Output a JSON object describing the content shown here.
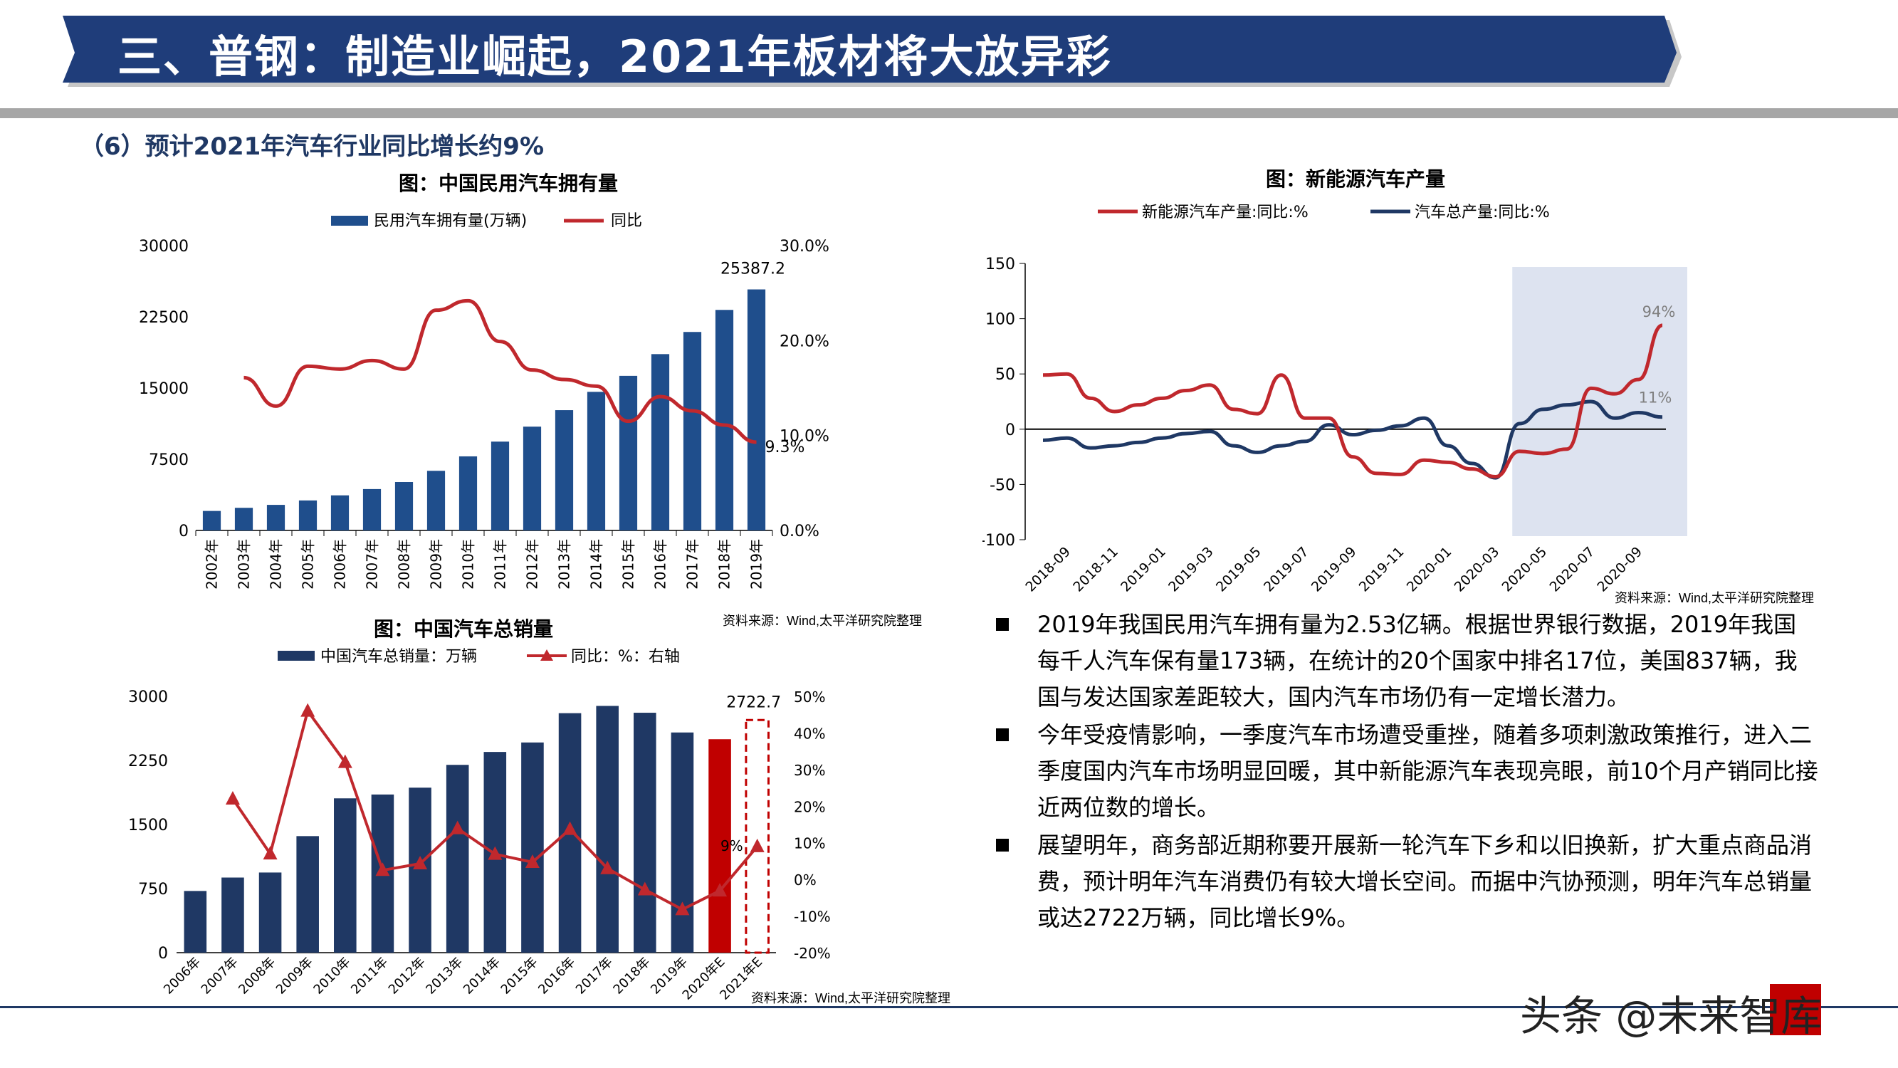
{
  "header": {
    "title": "三、普钢：制造业崛起，2021年板材将大放异彩",
    "banner_color": "#1f3d7a"
  },
  "section": {
    "title": "（6）预计2021年汽车行业同比增长约9%"
  },
  "charts": {
    "ownership": {
      "title": "图：中国民用汽车拥有量",
      "legend_bar": "民用汽车拥有量(万辆)",
      "legend_line": "同比",
      "source": "资料来源：Wind,太平洋研究院整理",
      "left_ticks": [
        "30000",
        "22500",
        "15000",
        "7500",
        "0"
      ],
      "right_ticks": [
        "30.0%",
        "20.0%",
        "10.0%",
        "0.0%"
      ],
      "label_last_bar": "25387.2",
      "label_last_line": "9.3%"
    },
    "nev": {
      "title": "图：新能源汽车产量",
      "legend_red": "新能源汽车产量:同比:%",
      "legend_blue": "汽车总产量:同比:%",
      "source": "资料来源：Wind,太平洋研究院整理",
      "y_ticks": [
        "150",
        "100",
        "50",
        "0",
        "-50",
        "-100"
      ],
      "x_ticks": [
        "2018-09",
        "2018-11",
        "2019-01",
        "2019-03",
        "2019-05",
        "2019-07",
        "2019-09",
        "2019-11",
        "2020-01",
        "2020-03",
        "2020-05",
        "2020-07",
        "2020-09"
      ],
      "label_red_end": "94%",
      "label_blue_end": "11%"
    },
    "sales": {
      "title": "图：中国汽车总销量",
      "legend_bar": "中国汽车总销量：万辆",
      "legend_line": "同比：%：右轴",
      "source": "资料来源：Wind,太平洋研究院整理",
      "left_ticks": [
        "3000",
        "2250",
        "1500",
        "750",
        "0"
      ],
      "right_ticks": [
        "50%",
        "40%",
        "30%",
        "20%",
        "10%",
        "0%",
        "-10%",
        "-20%"
      ],
      "label_last_bar": "2722.7",
      "label_last_line": "9%"
    }
  },
  "chart_data": [
    {
      "type": "bar",
      "title": "图：中国民用汽车拥有量",
      "categories": [
        "2002年",
        "2003年",
        "2004年",
        "2005年",
        "2006年",
        "2007年",
        "2008年",
        "2009年",
        "2010年",
        "2011年",
        "2012年",
        "2013年",
        "2014年",
        "2015年",
        "2016年",
        "2017年",
        "2018年",
        "2019年"
      ],
      "series": [
        {
          "name": "民用汽车拥有量(万辆)",
          "axis": "left",
          "values": [
            2053,
            2383,
            2694,
            3160,
            3697,
            4358,
            5100,
            6281,
            7802,
            9356,
            10933,
            12670,
            14598,
            16284,
            18575,
            20907,
            23231,
            25387.2
          ]
        },
        {
          "name": "同比",
          "type": "line",
          "axis": "right",
          "values": [
            null,
            16.1,
            13.1,
            17.3,
            17.0,
            17.9,
            17.0,
            23.2,
            24.2,
            19.9,
            16.9,
            15.9,
            15.2,
            11.5,
            14.1,
            12.6,
            11.1,
            9.3
          ]
        }
      ],
      "ylim_left": [
        0,
        30000
      ],
      "ylim_right": [
        0,
        30
      ],
      "legend_position": "top"
    },
    {
      "type": "line",
      "title": "图：新能源汽车产量",
      "x": [
        "2018-08",
        "2018-09",
        "2018-10",
        "2018-11",
        "2018-12",
        "2019-01",
        "2019-02",
        "2019-03",
        "2019-04",
        "2019-05",
        "2019-06",
        "2019-07",
        "2019-08",
        "2019-09",
        "2019-10",
        "2019-11",
        "2019-12",
        "2020-01",
        "2020-02",
        "2020-03",
        "2020-04",
        "2020-05",
        "2020-06",
        "2020-07",
        "2020-08",
        "2020-09",
        "2020-10"
      ],
      "series": [
        {
          "name": "新能源汽车产量:同比:%",
          "values": [
            49,
            50,
            28,
            16,
            22,
            28,
            35,
            40,
            18,
            14,
            49,
            10,
            10,
            -25,
            -40,
            -41,
            -28,
            -30,
            -36,
            -43,
            -20,
            -22,
            -18,
            37,
            32,
            45,
            94
          ]
        },
        {
          "name": "汽车总产量:同比:%",
          "values": [
            -10,
            -8,
            -17,
            -15,
            -12,
            -8,
            -4,
            -2,
            -15,
            -21,
            -15,
            -11,
            4,
            -5,
            -1,
            3,
            10,
            -15,
            -31,
            -44,
            5,
            18,
            22,
            25,
            10,
            15,
            11
          ]
        }
      ],
      "ylim": [
        -100,
        150
      ],
      "highlight_range": [
        "2020-04",
        "2020-10"
      ],
      "legend_position": "top"
    },
    {
      "type": "bar",
      "title": "图：中国汽车总销量",
      "categories": [
        "2006年",
        "2007年",
        "2008年",
        "2009年",
        "2010年",
        "2011年",
        "2012年",
        "2013年",
        "2014年",
        "2015年",
        "2016年",
        "2017年",
        "2018年",
        "2019年",
        "2020年E",
        "2021年E"
      ],
      "series": [
        {
          "name": "中国汽车总销量：万辆",
          "axis": "left",
          "values": [
            722,
            879,
            938,
            1364,
            1806,
            1851,
            1931,
            2198,
            2349,
            2460,
            2803,
            2888,
            2808,
            2577,
            2498,
            2722.7
          ]
        },
        {
          "name": "同比：%：右轴",
          "type": "line",
          "axis": "right",
          "values": [
            null,
            22,
            7,
            46,
            32,
            2.5,
            4.3,
            13.9,
            6.9,
            4.7,
            13.7,
            3.0,
            -2.8,
            -8.2,
            -3.1,
            9
          ]
        }
      ],
      "ylim_left": [
        0,
        3000
      ],
      "ylim_right": [
        -20,
        50
      ],
      "legend_position": "top"
    }
  ],
  "bullets": [
    "2019年我国民用汽车拥有量为2.53亿辆。根据世界银行数据，2019年我国每千人汽车保有量173辆，在统计的20个国家中排名17位，美国837辆，我国与发达国家差距较大，国内汽车市场仍有一定增长潜力。",
    "今年受疫情影响，一季度汽车市场遭受重挫，随着多项刺激政策推行，进入二季度国内汽车市场明显回暖，其中新能源汽车表现亮眼，前10个月产销同比接近两位数的增长。",
    "展望明年，商务部近期称要开展新一轮汽车下乡和以旧换新，扩大重点商品消费，预计明年汽车消费仍有较大增长空间。而据中汽协预测，明年汽车总销量或达2722万辆，同比增长9%。"
  ],
  "watermark": "头条 @未来智库",
  "colors": {
    "navy": "#1f3d7a",
    "bar_blue": "#1f4e8c",
    "red": "#c00000",
    "line_red": "#c0282d",
    "line_blue": "#1f3864",
    "highlight": "#dde3f0"
  }
}
